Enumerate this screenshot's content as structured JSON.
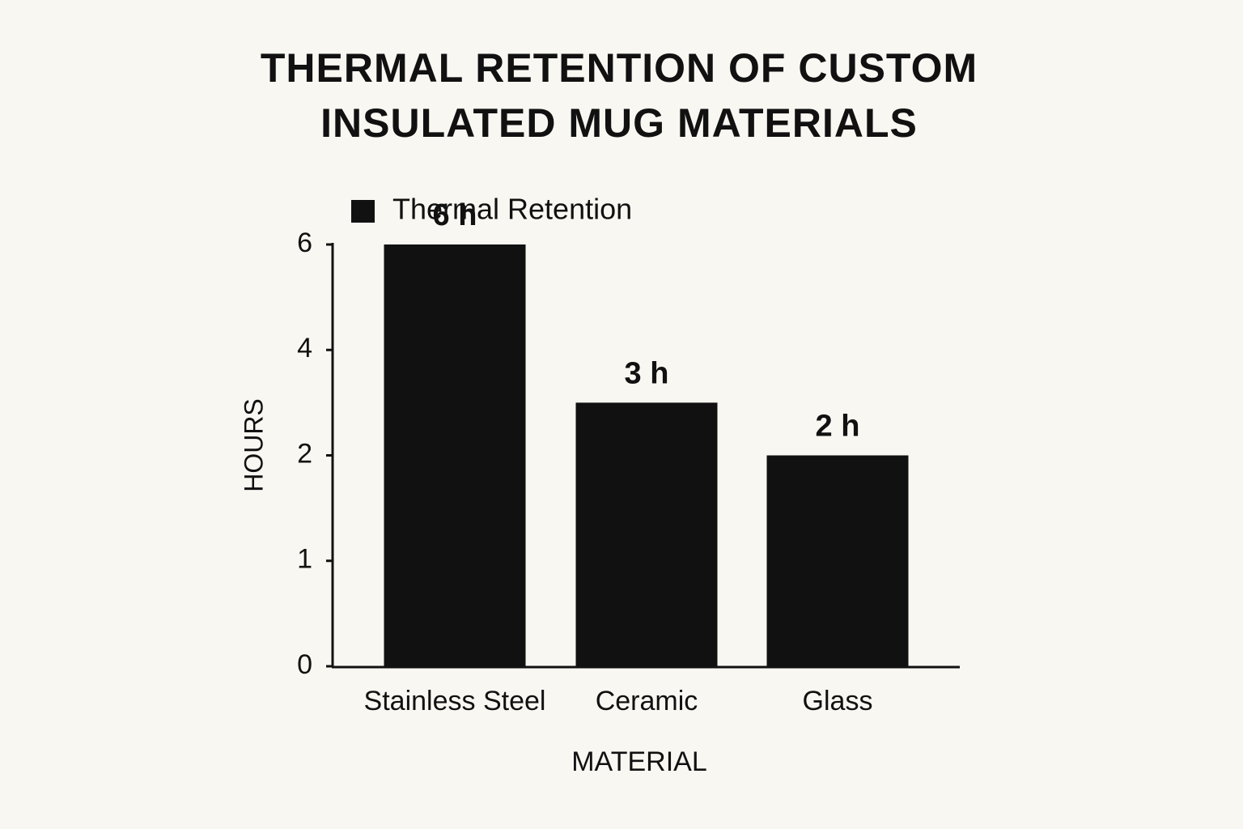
{
  "chart_data": {
    "type": "bar",
    "title": "THERMAL RETENTION OF CUSTOM INSULATED MUG MATERIALS",
    "x_label": "MATERIAL",
    "y_label": "HOURS",
    "categories": [
      "Stainless Steel",
      "Ceramic",
      "Glass"
    ],
    "series": [
      {
        "name": "Thermal Retention",
        "color": "#111111",
        "values": [
          6,
          3,
          2
        ],
        "value_labels": [
          "6 h",
          "3 h",
          "2 h"
        ]
      }
    ],
    "ylim": [
      0,
      6
    ],
    "yticks": [
      0,
      1,
      2,
      4,
      6
    ],
    "grid": false
  }
}
